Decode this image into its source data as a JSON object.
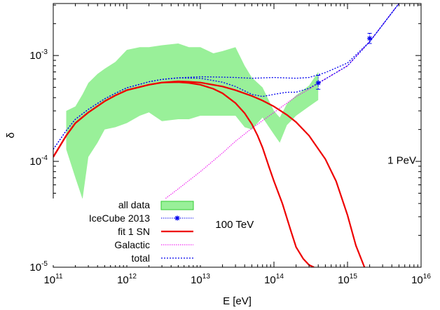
{
  "chart_data": {
    "type": "line",
    "title": "",
    "xlabel": "E [eV]",
    "ylabel": "δ",
    "x_scale": "log",
    "y_scale": "log",
    "xlim": [
      100000000000.0,
      1e+16
    ],
    "ylim": [
      1e-05,
      0.0031
    ],
    "grid": false,
    "legend_position": "bottom-left",
    "x_ticks": [
      {
        "value": 100000000000.0,
        "base": "10",
        "exp": "11"
      },
      {
        "value": 1000000000000.0,
        "base": "10",
        "exp": "12"
      },
      {
        "value": 10000000000000.0,
        "base": "10",
        "exp": "13"
      },
      {
        "value": 100000000000000.0,
        "base": "10",
        "exp": "14"
      },
      {
        "value": 1000000000000000.0,
        "base": "10",
        "exp": "15"
      },
      {
        "value": 1e+16,
        "base": "10",
        "exp": "16"
      }
    ],
    "y_ticks": [
      {
        "value": 1e-05,
        "base": "10",
        "exp": "-5"
      },
      {
        "value": 0.0001,
        "base": "10",
        "exp": "-4"
      },
      {
        "value": 0.001,
        "base": "10",
        "exp": "-3"
      }
    ],
    "annotations": [
      {
        "text": "1 PeV",
        "x": 3500000000000000.0,
        "y": 9.5e-05
      },
      {
        "text": "100 TeV",
        "x": 16000000000000.0,
        "y": 2.35e-05
      }
    ],
    "colors": {
      "band_fill": "#99f099",
      "band_edge": "#33cc33",
      "icecube": "#0000ee",
      "fit": "#ee0000",
      "galactic": "#ee00ee",
      "total": "#0000ee"
    },
    "series": [
      {
        "name": "all data",
        "kind": "band",
        "x": [
          150000000000.0,
          200000000000.0,
          250000000000.0,
          300000000000.0,
          400000000000.0,
          500000000000.0,
          700000000000.0,
          1000000000000.0,
          1500000000000.0,
          2000000000000.0,
          3000000000000.0,
          5000000000000.0,
          7000000000000.0,
          10000000000000.0,
          15000000000000.0,
          20000000000000.0,
          30000000000000.0,
          40000000000000.0,
          50000000000000.0,
          70000000000000.0,
          100000000000000.0,
          120000000000000.0,
          150000000000000.0,
          200000000000000.0,
          300000000000000.0,
          400000000000000.0
        ],
        "lower": [
          0.00013,
          7e-05,
          4.4e-05,
          0.00011,
          0.00015,
          0.0002,
          0.00021,
          0.00023,
          0.00027,
          0.00029,
          0.00024,
          0.00025,
          0.00025,
          0.00027,
          0.00027,
          0.00027,
          0.00027,
          0.00021,
          0.0002,
          0.00026,
          0.00018,
          0.00015,
          0.00022,
          0.00027,
          0.00033,
          0.00038
        ],
        "upper": [
          0.0003,
          0.00033,
          0.00043,
          0.00055,
          0.00067,
          0.00075,
          0.00087,
          0.00113,
          0.0012,
          0.0012,
          0.00125,
          0.0013,
          0.0012,
          0.0012,
          0.00105,
          0.0011,
          0.0012,
          0.0008,
          0.00062,
          0.0005,
          0.0003,
          0.00026,
          0.00035,
          0.00042,
          0.00052,
          0.0007
        ]
      },
      {
        "name": "IceCube 2013",
        "kind": "points",
        "x": [
          400000000000000.0,
          2000000000000000.0
        ],
        "y": [
          0.00055,
          0.00145
        ],
        "y_err_low": [
          0.00048,
          0.0013
        ],
        "y_err_high": [
          0.00065,
          0.00162
        ]
      },
      {
        "name": "fit 1 SN",
        "kind": "line",
        "curves": [
          {
            "label": "1 PeV",
            "x": [
              100000000000.0,
              150000000000.0,
              200000000000.0,
              300000000000.0,
              500000000000.0,
              700000000000.0,
              1000000000000.0,
              2000000000000.0,
              3000000000000.0,
              5000000000000.0,
              7000000000000.0,
              10000000000000.0,
              20000000000000.0,
              30000000000000.0,
              50000000000000.0,
              70000000000000.0,
              100000000000000.0,
              150000000000000.0,
              200000000000000.0,
              300000000000000.0,
              500000000000000.0,
              700000000000000.0,
              1000000000000000.0,
              1300000000000000.0,
              1700000000000000.0
            ],
            "y": [
              0.00011,
              0.000175,
              0.00023,
              0.00029,
              0.00037,
              0.00042,
              0.00047,
              0.00053,
              0.000555,
              0.00057,
              0.000565,
              0.000555,
              0.00051,
              0.00047,
              0.000415,
              0.000375,
              0.00033,
              0.000275,
              0.000235,
              0.000175,
              0.000105,
              6.5e-05,
              3.1e-05,
              1.6e-05,
              1e-05
            ]
          },
          {
            "label": "100 TeV",
            "x": [
              100000000000.0,
              150000000000.0,
              200000000000.0,
              300000000000.0,
              500000000000.0,
              700000000000.0,
              1000000000000.0,
              2000000000000.0,
              3000000000000.0,
              5000000000000.0,
              7000000000000.0,
              10000000000000.0,
              15000000000000.0,
              20000000000000.0,
              30000000000000.0,
              40000000000000.0,
              50000000000000.0,
              60000000000000.0,
              70000000000000.0,
              85000000000000.0,
              100000000000000.0,
              130000000000000.0,
              170000000000000.0,
              200000000000000.0,
              250000000000000.0,
              300000000000000.0,
              350000000000000.0
            ],
            "y": [
              0.00011,
              0.000175,
              0.00023,
              0.00029,
              0.00037,
              0.00042,
              0.00047,
              0.00053,
              0.000555,
              0.00056,
              0.00055,
              0.00053,
              0.000485,
              0.00044,
              0.000355,
              0.000285,
              0.000225,
              0.000175,
              0.000135,
              9e-05,
              6.5e-05,
              4e-05,
              2.2e-05,
              1.55e-05,
              1.2e-05,
              1.05e-05,
              1e-05
            ]
          }
        ]
      },
      {
        "name": "Galactic",
        "kind": "line",
        "x": [
          100000000000.0,
          200000000000.0,
          300000000000.0,
          500000000000.0,
          700000000000.0,
          1000000000000.0,
          2000000000000.0,
          3000000000000.0,
          5000000000000.0,
          10000000000000.0,
          20000000000000.0,
          30000000000000.0,
          50000000000000.0,
          100000000000000.0,
          200000000000000.0,
          300000000000000.0,
          500000000000000.0,
          1000000000000000.0,
          2000000000000000.0,
          3000000000000000.0,
          5000000000000000.0
        ],
        "y": [
          1.65e-05,
          1.6e-05,
          1.65e-05,
          1.8e-05,
          2e-05,
          2.4e-05,
          3.3e-05,
          4.2e-05,
          5.5e-05,
          8e-05,
          0.00012,
          0.000155,
          0.000205,
          0.00029,
          0.00041,
          0.00048,
          0.0006,
          0.0008,
          0.00135,
          0.00195,
          0.0031
        ]
      },
      {
        "name": "total",
        "kind": "line",
        "curves": [
          {
            "label": "1 PeV",
            "x": [
              100000000000.0,
              150000000000.0,
              200000000000.0,
              300000000000.0,
              500000000000.0,
              700000000000.0,
              1000000000000.0,
              2000000000000.0,
              3000000000000.0,
              5000000000000.0,
              10000000000000.0,
              20000000000000.0,
              30000000000000.0,
              50000000000000.0,
              100000000000000.0,
              200000000000000.0,
              300000000000000.0,
              500000000000000.0,
              1000000000000000.0,
              2000000000000000.0,
              3000000000000000.0,
              5000000000000000.0
            ],
            "y": [
              0.00013,
              0.000195,
              0.00025,
              0.00031,
              0.00039,
              0.00044,
              0.000495,
              0.000565,
              0.000595,
              0.000615,
              0.00063,
              0.000625,
              0.00062,
              0.00061,
              0.00062,
              0.00061,
              0.00062,
              0.00069,
              0.00085,
              0.00135,
              0.00195,
              0.0031
            ]
          },
          {
            "label": "100 TeV",
            "x": [
              100000000000.0,
              150000000000.0,
              200000000000.0,
              300000000000.0,
              500000000000.0,
              700000000000.0,
              1000000000000.0,
              2000000000000.0,
              3000000000000.0,
              5000000000000.0,
              10000000000000.0,
              20000000000000.0,
              30000000000000.0,
              50000000000000.0,
              70000000000000.0,
              100000000000000.0,
              150000000000000.0,
              200000000000000.0,
              300000000000000.0,
              500000000000000.0,
              1000000000000000.0,
              2000000000000000.0,
              3000000000000000.0,
              5000000000000000.0
            ],
            "y": [
              0.00013,
              0.000195,
              0.00025,
              0.00031,
              0.00039,
              0.00044,
              0.000495,
              0.000565,
              0.000595,
              0.000615,
              0.00061,
              0.00056,
              0.00051,
              0.00043,
              0.00041,
              0.00043,
              0.00045,
              0.00045,
              0.00049,
              0.0006,
              0.0008,
              0.00135,
              0.00195,
              0.0031
            ]
          }
        ]
      }
    ]
  }
}
